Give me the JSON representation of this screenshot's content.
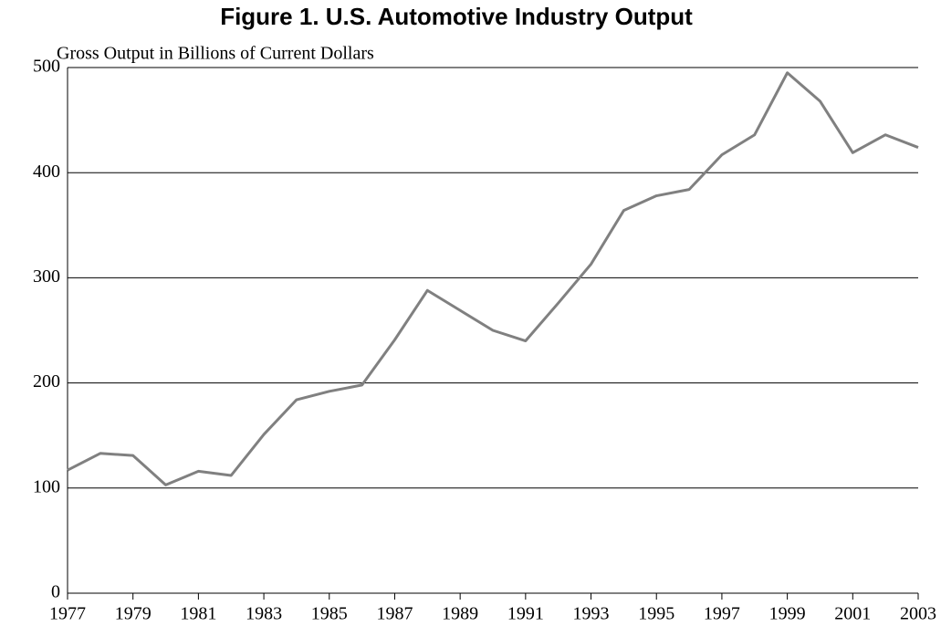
{
  "chart_data": {
    "type": "line",
    "title": "Figure 1. U.S. Automotive Industry Output",
    "y_label": "Gross Output in Billions of Current Dollars",
    "x": [
      1977,
      1978,
      1979,
      1980,
      1981,
      1982,
      1983,
      1984,
      1985,
      1986,
      1987,
      1988,
      1989,
      1990,
      1991,
      1992,
      1993,
      1994,
      1995,
      1996,
      1997,
      1998,
      1999,
      2000,
      2001,
      2002,
      2003
    ],
    "series": [
      {
        "name": "Gross Output",
        "color": "#808080",
        "values": [
          117,
          133,
          131,
          103,
          116,
          112,
          151,
          184,
          192,
          198,
          241,
          288,
          269,
          250,
          240,
          276,
          313,
          364,
          378,
          384,
          417,
          436,
          495,
          468,
          419,
          436,
          424
        ]
      }
    ],
    "xlim": [
      1977,
      2003
    ],
    "xticks": [
      1977,
      1979,
      1981,
      1983,
      1985,
      1987,
      1989,
      1991,
      1993,
      1995,
      1997,
      1999,
      2001,
      2003
    ],
    "ylim": [
      0,
      500
    ],
    "yticks": [
      0,
      100,
      200,
      300,
      400,
      500
    ],
    "grid": true
  }
}
